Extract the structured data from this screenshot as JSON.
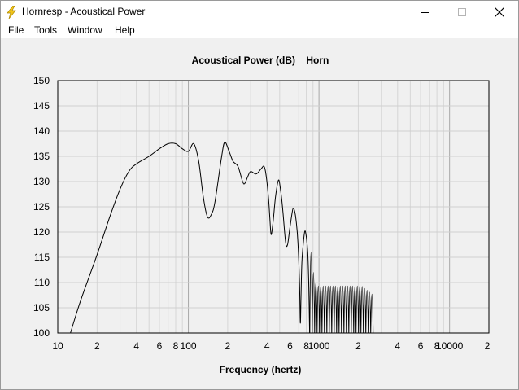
{
  "window": {
    "title": "Hornresp - Acoustical Power",
    "app_icon": "lightning-bolt-icon"
  },
  "menu": [
    "File",
    "Tools",
    "Window",
    "Help"
  ],
  "chart_data": {
    "type": "line",
    "title": "Acoustical Power (dB)    Horn",
    "xlabel": "Frequency (hertz)",
    "ylabel": "",
    "xscale": "log",
    "xlim": [
      10,
      20000
    ],
    "ylim": [
      100,
      150
    ],
    "x_tick_labels": [
      {
        "value": 10,
        "label": "10"
      },
      {
        "value": 20,
        "label": "2"
      },
      {
        "value": 40,
        "label": "4"
      },
      {
        "value": 60,
        "label": "6"
      },
      {
        "value": 80,
        "label": "8"
      },
      {
        "value": 100,
        "label": "100"
      },
      {
        "value": 200,
        "label": "2"
      },
      {
        "value": 400,
        "label": "4"
      },
      {
        "value": 600,
        "label": "6"
      },
      {
        "value": 800,
        "label": "8"
      },
      {
        "value": 1000,
        "label": "1000"
      },
      {
        "value": 2000,
        "label": "2"
      },
      {
        "value": 4000,
        "label": "4"
      },
      {
        "value": 6000,
        "label": "6"
      },
      {
        "value": 8000,
        "label": "8"
      },
      {
        "value": 10000,
        "label": "10000"
      },
      {
        "value": 20000,
        "label": "2"
      }
    ],
    "y_ticks": [
      150,
      145,
      140,
      135,
      130,
      125,
      120,
      115,
      110,
      105,
      100
    ],
    "grid": true,
    "series": [
      {
        "points": [
          [
            12.5,
            100
          ],
          [
            15,
            106.5
          ],
          [
            20,
            115.5
          ],
          [
            25,
            123
          ],
          [
            30,
            128.5
          ],
          [
            35,
            132
          ],
          [
            40,
            133.5
          ],
          [
            50,
            135
          ],
          [
            60,
            136.5
          ],
          [
            70,
            137.5
          ],
          [
            80,
            137.5
          ],
          [
            90,
            136.5
          ],
          [
            100,
            136
          ],
          [
            110,
            137.5
          ],
          [
            120,
            134
          ],
          [
            130,
            127
          ],
          [
            140,
            123
          ],
          [
            150,
            123.5
          ],
          [
            160,
            126
          ],
          [
            180,
            135
          ],
          [
            190,
            137.8
          ],
          [
            205,
            136
          ],
          [
            220,
            134
          ],
          [
            240,
            133
          ],
          [
            260,
            130
          ],
          [
            270,
            129.6
          ],
          [
            285,
            131
          ],
          [
            300,
            132
          ],
          [
            330,
            131.5
          ],
          [
            360,
            132.5
          ],
          [
            380,
            133
          ],
          [
            395,
            131
          ],
          [
            410,
            127
          ],
          [
            420,
            123
          ],
          [
            430,
            119.5
          ],
          [
            445,
            122
          ],
          [
            465,
            127
          ],
          [
            490,
            130.3
          ],
          [
            510,
            128
          ],
          [
            530,
            124
          ],
          [
            555,
            118
          ],
          [
            575,
            117.5
          ],
          [
            600,
            121
          ],
          [
            630,
            124.5
          ],
          [
            650,
            124.2
          ],
          [
            670,
            122
          ],
          [
            690,
            118
          ],
          [
            710,
            110
          ],
          [
            720,
            102
          ],
          [
            728,
            107
          ],
          [
            740,
            114
          ],
          [
            760,
            118
          ],
          [
            780,
            120.2
          ],
          [
            800,
            119
          ],
          [
            820,
            116
          ],
          [
            835,
            110
          ],
          [
            848,
            100
          ]
        ]
      }
    ]
  }
}
